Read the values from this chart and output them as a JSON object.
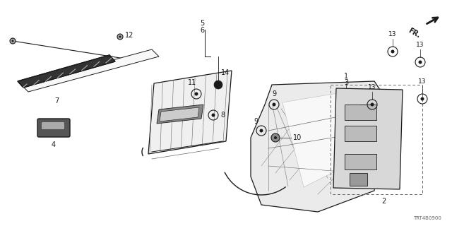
{
  "bg_color": "#ffffff",
  "diagram_code": "TRT4B0900",
  "dark": "#1a1a1a",
  "gray": "#666666",
  "light_gray": "#cccccc",
  "mid_gray": "#aaaaaa"
}
